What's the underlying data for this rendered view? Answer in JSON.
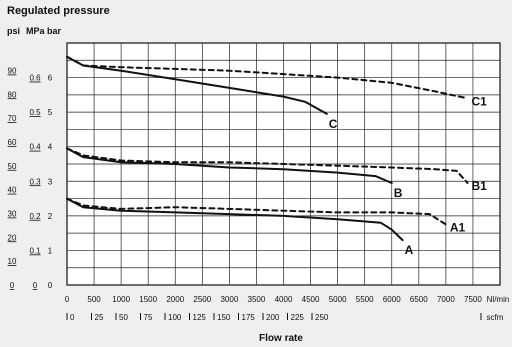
{
  "chart_data": {
    "type": "line",
    "title": "Regulated pressure",
    "xlabel": "Flow rate",
    "x_unit_primary": "Nl/min",
    "x_unit_secondary": "scfm",
    "y_units": [
      "psi",
      "MPa",
      "bar"
    ],
    "x_ticks_primary": [
      "0",
      "500",
      "1000",
      "1500",
      "2000",
      "2500",
      "3000",
      "3500",
      "4000",
      "4500",
      "5000",
      "5500",
      "6000",
      "6500",
      "7000",
      "7500"
    ],
    "x_ticks_secondary": [
      "0",
      "25",
      "50",
      "75",
      "100",
      "125",
      "150",
      "175",
      "200",
      "225",
      "250"
    ],
    "y_ticks_psi": [
      "0",
      "10",
      "20",
      "30",
      "40",
      "50",
      "60",
      "70",
      "80",
      "90"
    ],
    "y_ticks_mpa": [
      "0",
      "0.1",
      "0.2",
      "0.3",
      "0.4",
      "0.5",
      "0.6"
    ],
    "y_ticks_bar": [
      "0",
      "1",
      "2",
      "3",
      "4",
      "5",
      "6"
    ],
    "xlim": [
      0,
      8000
    ],
    "ylim_bar": [
      0,
      7
    ],
    "grid": true,
    "series": [
      {
        "name": "C",
        "style": "solid",
        "points": [
          [
            0,
            6.6
          ],
          [
            300,
            6.35
          ],
          [
            1000,
            6.2
          ],
          [
            2000,
            5.95
          ],
          [
            3000,
            5.7
          ],
          [
            4000,
            5.45
          ],
          [
            4400,
            5.3
          ],
          [
            4800,
            4.95
          ]
        ]
      },
      {
        "name": "C1",
        "style": "dashed",
        "points": [
          [
            0,
            6.6
          ],
          [
            300,
            6.35
          ],
          [
            1000,
            6.3
          ],
          [
            2000,
            6.25
          ],
          [
            3000,
            6.2
          ],
          [
            4000,
            6.1
          ],
          [
            5000,
            6.0
          ],
          [
            6000,
            5.85
          ],
          [
            6800,
            5.6
          ],
          [
            7400,
            5.4
          ]
        ]
      },
      {
        "name": "B",
        "style": "solid",
        "points": [
          [
            0,
            3.95
          ],
          [
            300,
            3.7
          ],
          [
            1000,
            3.55
          ],
          [
            2000,
            3.5
          ],
          [
            3000,
            3.4
          ],
          [
            4000,
            3.35
          ],
          [
            5000,
            3.25
          ],
          [
            5700,
            3.15
          ],
          [
            6000,
            2.95
          ]
        ]
      },
      {
        "name": "B1",
        "style": "dashed",
        "points": [
          [
            0,
            3.95
          ],
          [
            300,
            3.75
          ],
          [
            1000,
            3.6
          ],
          [
            2000,
            3.55
          ],
          [
            3000,
            3.55
          ],
          [
            4000,
            3.5
          ],
          [
            5000,
            3.45
          ],
          [
            6000,
            3.4
          ],
          [
            6800,
            3.35
          ],
          [
            7200,
            3.3
          ],
          [
            7400,
            2.95
          ]
        ]
      },
      {
        "name": "A",
        "style": "solid",
        "points": [
          [
            0,
            2.5
          ],
          [
            300,
            2.25
          ],
          [
            1000,
            2.15
          ],
          [
            2000,
            2.1
          ],
          [
            3000,
            2.05
          ],
          [
            4000,
            2.0
          ],
          [
            5000,
            1.9
          ],
          [
            5800,
            1.8
          ],
          [
            6000,
            1.6
          ],
          [
            6200,
            1.3
          ]
        ]
      },
      {
        "name": "A1",
        "style": "dashed",
        "points": [
          [
            0,
            2.5
          ],
          [
            300,
            2.3
          ],
          [
            1000,
            2.2
          ],
          [
            2000,
            2.25
          ],
          [
            3000,
            2.2
          ],
          [
            4000,
            2.15
          ],
          [
            5000,
            2.1
          ],
          [
            6000,
            2.1
          ],
          [
            6700,
            2.05
          ],
          [
            7000,
            1.75
          ]
        ]
      }
    ]
  }
}
